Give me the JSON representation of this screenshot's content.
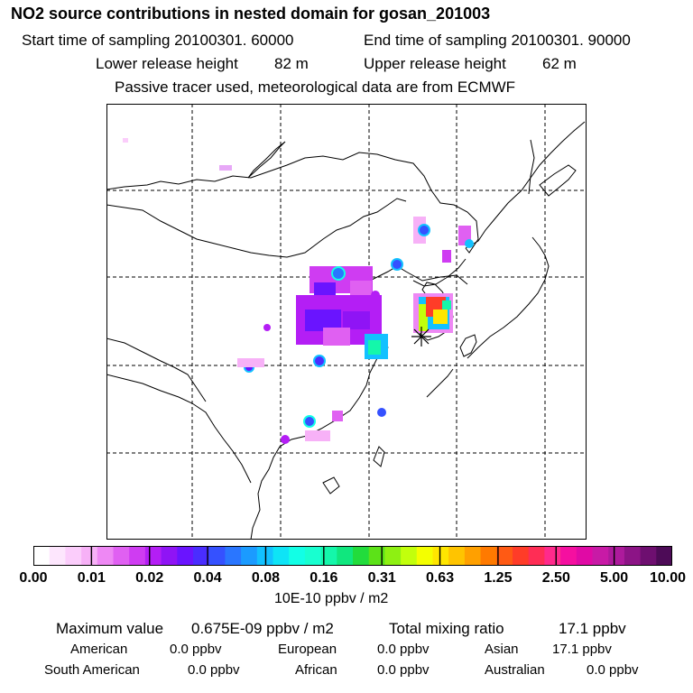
{
  "title": "NO2 source contributions in nested domain for gosan_201003",
  "sampling": {
    "start_label": "Start time of sampling 20100301. 60000",
    "end_label": "End time of sampling 20100301. 90000"
  },
  "release": {
    "lower_label": "Lower release height",
    "lower_value": "82 m",
    "upper_label": "Upper release height",
    "upper_value": "62 m"
  },
  "note": "Passive tracer used, meteorological data are from ECMWF",
  "colorbar": {
    "ticks": [
      "0.00",
      "0.01",
      "0.02",
      "0.04",
      "0.08",
      "0.16",
      "0.31",
      "0.63",
      "1.25",
      "2.50",
      "5.00",
      "10.00"
    ],
    "unit": "10E-10 ppbv / m2",
    "colors": [
      "#ffffff",
      "#fde6fd",
      "#fbcdfb",
      "#f7b1f7",
      "#ee88f4",
      "#e060f2",
      "#cf3cf2",
      "#b41ef5",
      "#8f14f5",
      "#6a14ff",
      "#4a2dff",
      "#3551ff",
      "#2a76ff",
      "#1b9bff",
      "#12c1ff",
      "#0ee4f6",
      "#12ffe6",
      "#18ffd0",
      "#14f7aa",
      "#10e77e",
      "#22dc3c",
      "#5ce218",
      "#8ef012",
      "#c2ff0c",
      "#f4ff00",
      "#ffe600",
      "#ffc400",
      "#ffa000",
      "#ff7a00",
      "#ff5a14",
      "#ff3c28",
      "#ff2d55",
      "#ff2a8c",
      "#f50fa0",
      "#e00aa5",
      "#c81aa6",
      "#ad1a9c",
      "#8c1486",
      "#6e0f70",
      "#4d0b57"
    ]
  },
  "summary": {
    "max_label": "Maximum value",
    "max_value": "0.675E-09 ppbv / m2",
    "total_label": "Total mixing ratio",
    "total_value": "17.1 ppbv"
  },
  "contributions": [
    {
      "name": "American",
      "value": "0.0 ppbv"
    },
    {
      "name": "European",
      "value": "0.0 ppbv"
    },
    {
      "name": "Asian",
      "value": "17.1 ppbv"
    },
    {
      "name": "South American",
      "value": "0.0 ppbv"
    },
    {
      "name": "African",
      "value": "0.0 ppbv"
    },
    {
      "name": "Australian",
      "value": "0.0 ppbv"
    }
  ]
}
